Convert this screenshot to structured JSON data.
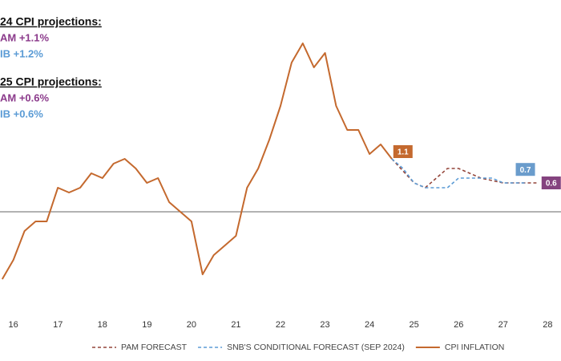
{
  "chart_data": {
    "type": "line",
    "xlim": [
      15.7,
      28.3
    ],
    "xticks": [
      16,
      17,
      18,
      19,
      20,
      21,
      22,
      23,
      24,
      25,
      26,
      27,
      28
    ],
    "ylim": [
      -1.8,
      4.4
    ],
    "hline": 0,
    "legend": "bottom",
    "series": [
      {
        "name": "PAM FORECAST",
        "color": "#94453a",
        "dashed": true,
        "x": [
          24.5,
          25,
          25.25,
          25.75,
          26,
          26.5,
          27,
          27.75
        ],
        "values": [
          1.1,
          0.6,
          0.5,
          0.9,
          0.9,
          0.7,
          0.6,
          0.6
        ]
      },
      {
        "name": "SNB'S CONDITIONAL FORECAST (SEP 2024)",
        "color": "#5b9bd5",
        "dashed": true,
        "x": [
          24.5,
          24.75,
          25,
          25.25,
          25.75,
          26,
          26.75,
          27,
          27.5
        ],
        "values": [
          1.1,
          0.9,
          0.6,
          0.5,
          0.5,
          0.7,
          0.7,
          0.6,
          0.6
        ]
      },
      {
        "name": "CPI INFLATION",
        "color": "#c4692e",
        "dashed": false,
        "x": [
          15.75,
          16,
          16.25,
          16.5,
          16.75,
          17,
          17.25,
          17.5,
          17.75,
          18,
          18.25,
          18.5,
          18.75,
          19,
          19.25,
          19.5,
          19.75,
          20,
          20.25,
          20.5,
          20.75,
          21,
          21.25,
          21.5,
          21.75,
          22,
          22.25,
          22.5,
          22.75,
          23,
          23.25,
          23.5,
          23.75,
          24,
          24.25,
          24.5
        ],
        "values": [
          -1.4,
          -1.0,
          -0.4,
          -0.2,
          -0.2,
          0.5,
          0.4,
          0.5,
          0.8,
          0.7,
          1.0,
          1.1,
          0.9,
          0.6,
          0.7,
          0.2,
          0.0,
          -0.2,
          -1.3,
          -0.9,
          -0.7,
          -0.5,
          0.5,
          0.9,
          1.5,
          2.2,
          3.1,
          3.5,
          3.0,
          3.3,
          2.2,
          1.7,
          1.7,
          1.2,
          1.4,
          1.1
        ]
      }
    ],
    "annotations": [
      {
        "text": "1.1",
        "x": 24.75,
        "y": 1.25,
        "color": "#c4692e"
      },
      {
        "text": "0.7",
        "x": 27.5,
        "y": 0.88,
        "color": "#6a9ccc"
      },
      {
        "text": "0.6",
        "x": 28.08,
        "y": 0.6,
        "color": "#84437f"
      }
    ],
    "notes": [
      {
        "title": "24 CPI projections:",
        "lines": [
          {
            "text": "AM +1.1%",
            "color": "#8b3a8b"
          },
          {
            "text": "IB +1.2%",
            "color": "#5b9bd5"
          }
        ]
      },
      {
        "title": "25 CPI projections:",
        "lines": [
          {
            "text": "AM +0.6%",
            "color": "#8b3a8b"
          },
          {
            "text": "IB +0.6%",
            "color": "#5b9bd5"
          }
        ]
      }
    ]
  }
}
